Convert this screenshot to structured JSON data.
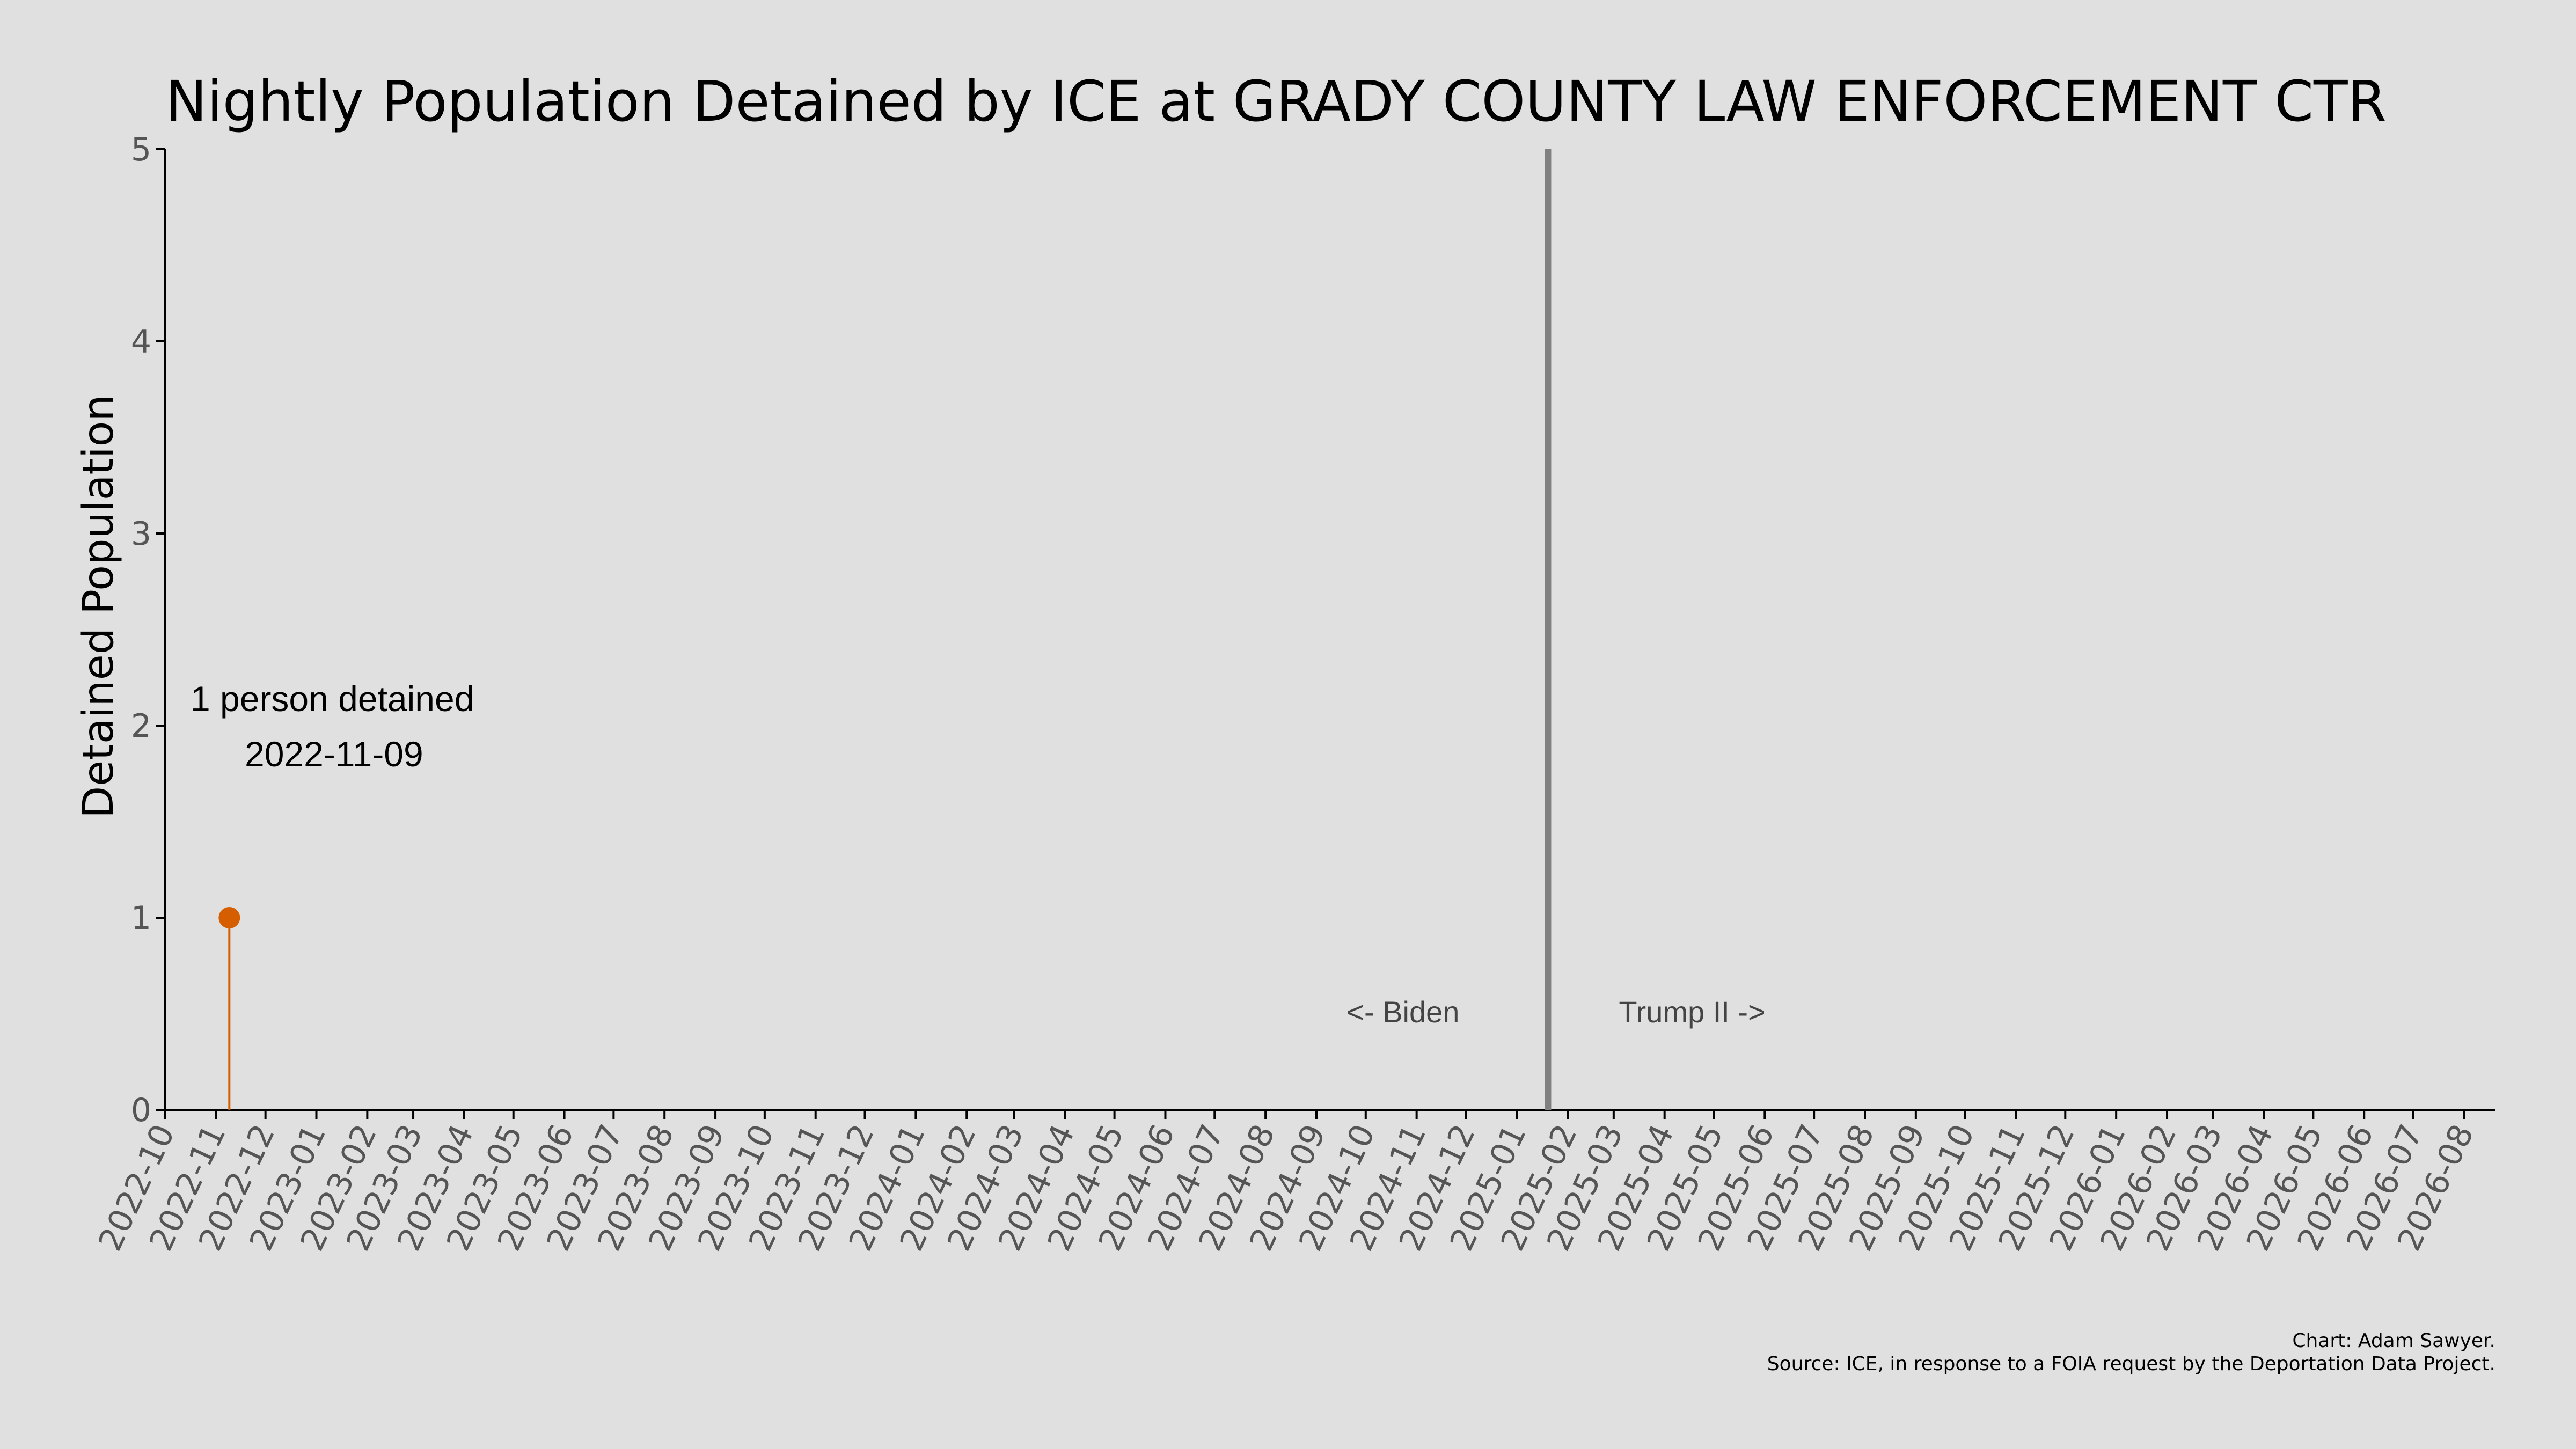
{
  "chart_data": {
    "type": "scatter",
    "title": "Nightly Population Detained by ICE at GRADY COUNTY LAW ENFORCEMENT CTR",
    "xlabel": "",
    "ylabel": "Detained Population",
    "x_range": [
      "2022-10-01",
      "2026-08-20"
    ],
    "ylim": [
      0,
      5
    ],
    "y_ticks": [
      "0",
      "1",
      "2",
      "3",
      "4",
      "5"
    ],
    "x_ticks": [
      "2022-10",
      "2022-11",
      "2022-12",
      "2023-01",
      "2023-02",
      "2023-03",
      "2023-04",
      "2023-05",
      "2023-06",
      "2023-07",
      "2023-08",
      "2023-09",
      "2023-10",
      "2023-11",
      "2023-12",
      "2024-01",
      "2024-02",
      "2024-03",
      "2024-04",
      "2024-05",
      "2024-06",
      "2024-07",
      "2024-08",
      "2024-09",
      "2024-10",
      "2024-11",
      "2024-12",
      "2025-01",
      "2025-02",
      "2025-03",
      "2025-04",
      "2025-05",
      "2025-06",
      "2025-07",
      "2025-08",
      "2025-09",
      "2025-10",
      "2025-11",
      "2025-12",
      "2026-01",
      "2026-02",
      "2026-03",
      "2026-04",
      "2026-05",
      "2026-06",
      "2026-07",
      "2026-08"
    ],
    "series": [
      {
        "points": [
          {
            "x": "2022-11-09",
            "y": 1
          }
        ],
        "color": "#d55e00"
      }
    ],
    "divider": {
      "x": "2025-01-20",
      "color": "#808080"
    },
    "grid": false,
    "annotation": {
      "line1": "1 person detained",
      "line2": "2022-11-09"
    },
    "era_labels": {
      "left": "<- Biden",
      "right": "Trump II ->"
    }
  },
  "credits": {
    "line1": "Chart: Adam Sawyer.",
    "line2": "Source: ICE, in response to a FOIA request by the Deportation Data Project."
  }
}
